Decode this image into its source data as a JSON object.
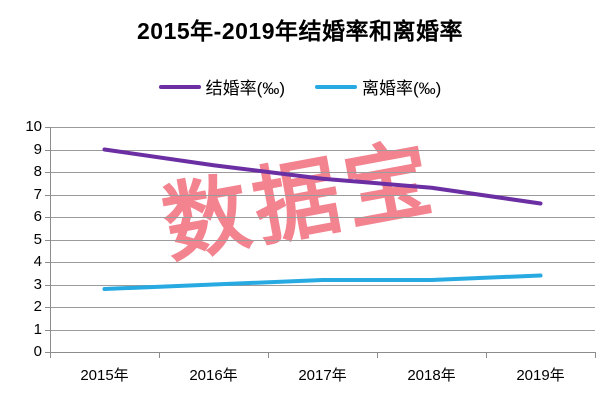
{
  "watermark": "数据宝",
  "colors": {
    "grid": "#9B9B9B",
    "axis": "#8C8C8C",
    "watermark": "#F2838F",
    "text": "#000000",
    "marriage_line": "#6B2FA3",
    "divorce_line": "#27AAE1"
  },
  "chart_data": {
    "type": "line",
    "title": "2015年-2019年结婚率和离婚率",
    "categories": [
      "2015年",
      "2016年",
      "2017年",
      "2018年",
      "2019年"
    ],
    "series": [
      {
        "name": "结婚率(‰)",
        "color": "#6B2FA3",
        "values": [
          9.0,
          8.3,
          7.7,
          7.3,
          6.6
        ]
      },
      {
        "name": "离婚率(‰)",
        "color": "#27AAE1",
        "values": [
          2.8,
          3.0,
          3.2,
          3.2,
          3.4
        ]
      }
    ],
    "xlabel": "",
    "ylabel": "",
    "ylim": [
      0,
      10
    ],
    "ytick_step": 1,
    "yticks": [
      "10",
      "9",
      "8",
      "7",
      "6",
      "5",
      "4",
      "3",
      "2",
      "1",
      "0"
    ],
    "grid": true,
    "legend_position": "top"
  }
}
